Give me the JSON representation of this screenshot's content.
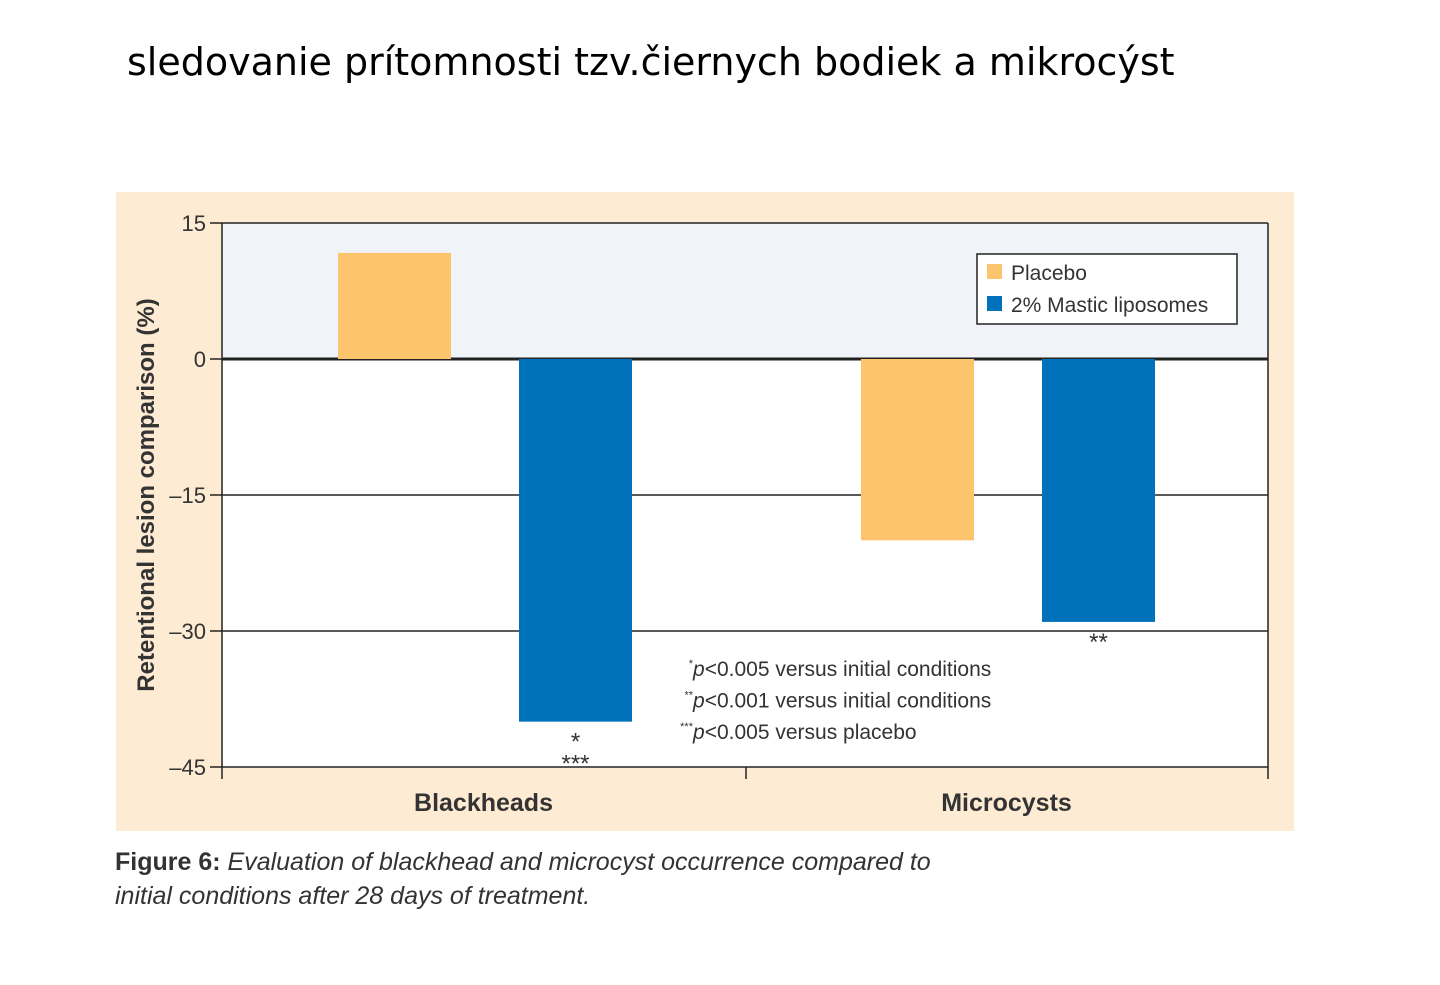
{
  "slide_title": "sledovanie prítomnosti tzv.čiernych bodiek a mikrocýst",
  "chart_data": {
    "type": "bar",
    "categories": [
      "Blackheads",
      "Microcysts"
    ],
    "series": [
      {
        "name": "Placebo",
        "color": "#FDC46E",
        "values": [
          11.7,
          -20
        ]
      },
      {
        "name": "2% Mastic liposomes",
        "color": "#0072BC",
        "values": [
          -40,
          -29
        ]
      }
    ],
    "ylabel": "Retentional lesion comparison (%)",
    "xlabel": "",
    "ylim": [
      -45,
      15
    ],
    "yticks": [
      15,
      0,
      -15,
      -30,
      -45
    ],
    "ytick_labels": [
      "15",
      "0",
      "–15",
      "–30",
      "–45"
    ],
    "grid": true,
    "legend_position": "top-right",
    "significance_marks": [
      {
        "category": "Blackheads",
        "series": "2% Mastic liposomes",
        "marks": [
          "*",
          "***"
        ]
      },
      {
        "category": "Microcysts",
        "series": "2% Mastic liposomes",
        "marks": [
          "**"
        ]
      }
    ],
    "footnotes": [
      {
        "sup": "*",
        "text": "p<0.005 versus initial conditions"
      },
      {
        "sup": "**",
        "text": "p<0.001 versus initial conditions"
      },
      {
        "sup": "***",
        "text": "p<0.005 versus placebo"
      }
    ]
  },
  "caption": {
    "label": "Figure 6:",
    "text": " Evaluation of blackhead and microcyst occurrence compared to",
    "text2": "initial conditions after 28 days of treatment."
  }
}
